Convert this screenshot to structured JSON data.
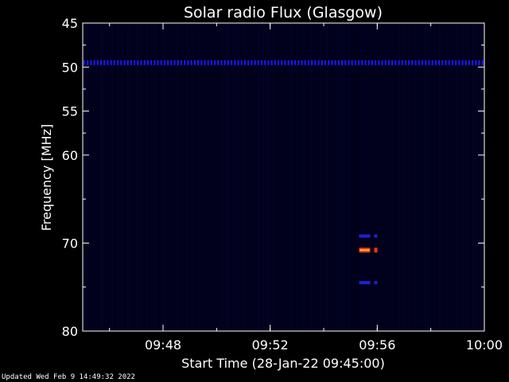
{
  "chart_data": {
    "type": "heatmap",
    "title": "Solar radio Flux (Glasgow)",
    "xlabel": "Start Time (28-Jan-22 09:45:00)",
    "ylabel": "Frequency [MHz]",
    "x_range_minutes_after_start": [
      0,
      15
    ],
    "x_ticks": [
      {
        "label": "09:48",
        "minute": 3
      },
      {
        "label": "09:52",
        "minute": 7
      },
      {
        "label": "09:56",
        "minute": 11
      },
      {
        "label": "10:00",
        "minute": 15
      }
    ],
    "y_range_mhz": [
      45,
      80
    ],
    "y_axis_inverted": true,
    "y_ticks": [
      45,
      50,
      55,
      60,
      70,
      80
    ],
    "y_minor_ticks": [
      47.5,
      52.5,
      57.5,
      65,
      75
    ],
    "background_color": "#00001a",
    "features": [
      {
        "kind": "interference_band",
        "frequency_mhz": 49.5,
        "start_minute": 0,
        "end_minute": 15,
        "intensity": "low",
        "color": "#1a1aff"
      },
      {
        "kind": "burst",
        "time": "09:55:30",
        "minute": 10.5,
        "frequency_mhz": 70.8,
        "intensity": "high",
        "color": "#ff3010"
      },
      {
        "kind": "burst",
        "time": "09:55:30",
        "minute": 10.5,
        "frequency_mhz": 69.2,
        "intensity": "low",
        "color": "#2020d0"
      },
      {
        "kind": "burst",
        "time": "09:55:30",
        "minute": 10.5,
        "frequency_mhz": 74.5,
        "intensity": "low",
        "color": "#2020d0"
      }
    ]
  },
  "footer": "Updated Wed Feb  9 14:49:32 2022"
}
